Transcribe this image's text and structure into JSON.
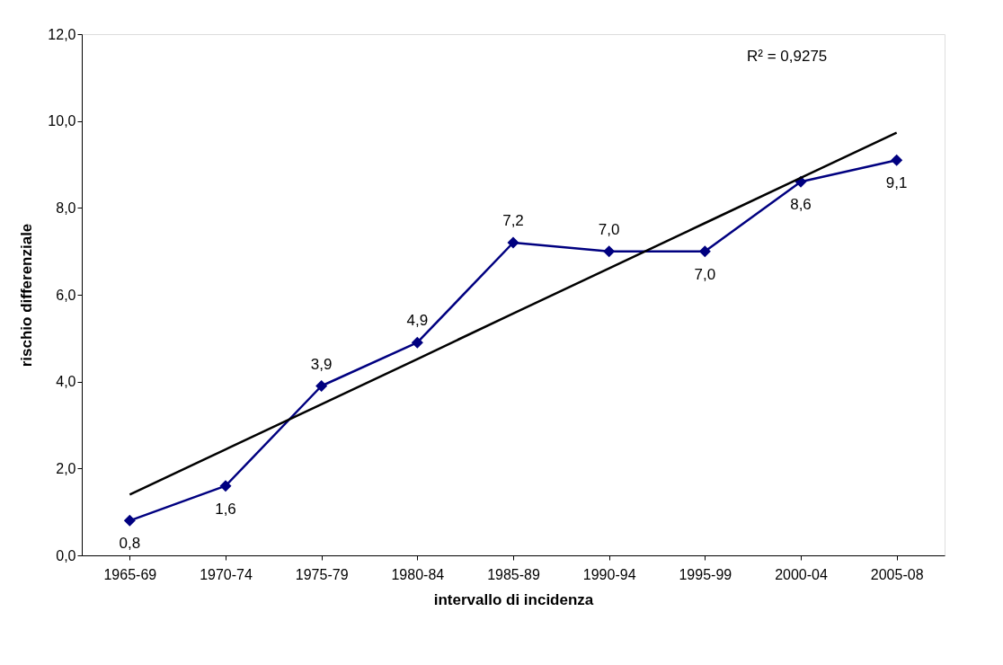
{
  "chart_data": {
    "type": "line",
    "xlabel": "intervallo di incidenza",
    "ylabel": "rischio differenziale",
    "categories": [
      "1965-69",
      "1970-74",
      "1975-79",
      "1980-84",
      "1985-89",
      "1990-94",
      "1995-99",
      "2000-04",
      "2005-08"
    ],
    "series": [
      {
        "color": "#000080",
        "values": [
          0.8,
          1.6,
          3.9,
          4.9,
          7.2,
          7.0,
          7.0,
          8.6,
          9.1
        ],
        "value_labels": [
          "0,8",
          "1,6",
          "3,9",
          "4,9",
          "7,2",
          "7,0",
          "7,0",
          "8,6",
          "9,1"
        ],
        "marker": "diamond"
      },
      {
        "type": "line",
        "color": "#000000",
        "values": [
          1.4,
          2.44,
          3.48,
          4.52,
          5.57,
          6.61,
          7.65,
          8.69,
          9.73
        ],
        "marker": "none"
      }
    ],
    "ylim": [
      0,
      12
    ],
    "yticks": [
      {
        "value": 0,
        "label": "0,0"
      },
      {
        "value": 2,
        "label": "2,0"
      },
      {
        "value": 4,
        "label": "4,0"
      },
      {
        "value": 6,
        "label": "6,0"
      },
      {
        "value": 8,
        "label": "8,0"
      },
      {
        "value": 10,
        "label": "10,0"
      },
      {
        "value": 12,
        "label": "12,0"
      }
    ],
    "annotations": [
      "R² = 0,9275"
    ],
    "grid": false
  }
}
